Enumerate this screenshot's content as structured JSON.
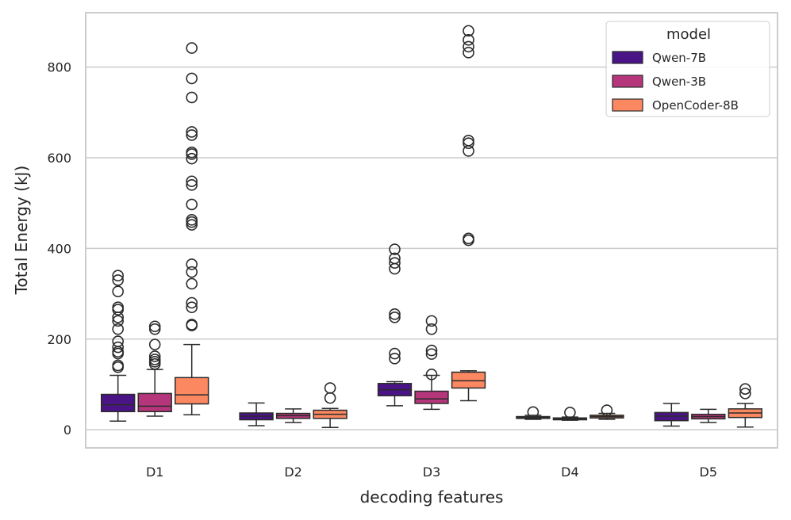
{
  "chart_data": {
    "type": "box",
    "xlabel": "decoding features",
    "ylabel": "Total Energy (kJ)",
    "ylim": [
      -40,
      920
    ],
    "yticks": [
      0,
      200,
      400,
      600,
      800
    ],
    "grid": "horizontal",
    "categories": [
      "D1",
      "D2",
      "D3",
      "D4",
      "D5"
    ],
    "legend": {
      "title": "model",
      "placement": "top-right"
    },
    "series": [
      {
        "name": "Qwen-7B",
        "color": "#4a1486",
        "boxes": [
          {
            "q1": 40,
            "median": 55,
            "q3": 78,
            "whisker_low": 19,
            "whisker_high": 120,
            "outliers": [
              138,
              142,
              168,
              172,
              182,
              195,
              222,
              240,
              248,
              265,
              270,
              305,
              330,
              340
            ]
          },
          {
            "q1": 22,
            "median": 30,
            "q3": 37,
            "whisker_low": 9,
            "whisker_high": 59,
            "outliers": []
          },
          {
            "q1": 75,
            "median": 88,
            "q3": 102,
            "whisker_low": 53,
            "whisker_high": 106,
            "outliers": [
              157,
              168,
              248,
              255,
              355,
              368,
              378,
              398
            ]
          },
          {
            "q1": 25,
            "median": 27,
            "q3": 29,
            "whisker_low": 23,
            "whisker_high": 32,
            "outliers": [
              39
            ]
          },
          {
            "q1": 20,
            "median": 30,
            "q3": 38,
            "whisker_low": 8,
            "whisker_high": 58,
            "outliers": []
          }
        ]
      },
      {
        "name": "Qwen-3B",
        "color": "#b5367a",
        "boxes": [
          {
            "q1": 40,
            "median": 52,
            "q3": 80,
            "whisker_low": 30,
            "whisker_high": 133,
            "outliers": [
              145,
              150,
              155,
              162,
              188,
              222,
              228
            ]
          },
          {
            "q1": 25,
            "median": 31,
            "q3": 36,
            "whisker_low": 16,
            "whisker_high": 46,
            "outliers": []
          },
          {
            "q1": 58,
            "median": 68,
            "q3": 85,
            "whisker_low": 45,
            "whisker_high": 120,
            "outliers": [
              122,
              167,
              175,
              222,
              240
            ]
          },
          {
            "q1": 22,
            "median": 24,
            "q3": 26,
            "whisker_low": 21,
            "whisker_high": 28,
            "outliers": [
              38
            ]
          },
          {
            "q1": 24,
            "median": 29,
            "q3": 34,
            "whisker_low": 16,
            "whisker_high": 45,
            "outliers": []
          }
        ]
      },
      {
        "name": "OpenCoder-8B",
        "color": "#fb8861",
        "boxes": [
          {
            "q1": 57,
            "median": 77,
            "q3": 115,
            "whisker_low": 33,
            "whisker_high": 188,
            "outliers": [
              230,
              232,
              270,
              280,
              322,
              348,
              365,
              452,
              458,
              463,
              497,
              540,
              548,
              598,
              608,
              612,
              650,
              657,
              733,
              775,
              842
            ]
          },
          {
            "q1": 25,
            "median": 34,
            "q3": 43,
            "whisker_low": 5,
            "whisker_high": 47,
            "outliers": [
              70,
              92
            ]
          },
          {
            "q1": 92,
            "median": 108,
            "q3": 127,
            "whisker_low": 64,
            "whisker_high": 130,
            "outliers": [
              418,
              422,
              615,
              632,
              638,
              832,
              845,
              860,
              880
            ]
          },
          {
            "q1": 26,
            "median": 29,
            "q3": 32,
            "whisker_low": 23,
            "whisker_high": 36,
            "outliers": [
              43
            ]
          },
          {
            "q1": 27,
            "median": 37,
            "q3": 46,
            "whisker_low": 6,
            "whisker_high": 58,
            "outliers": [
              80,
              90
            ]
          }
        ]
      }
    ]
  }
}
